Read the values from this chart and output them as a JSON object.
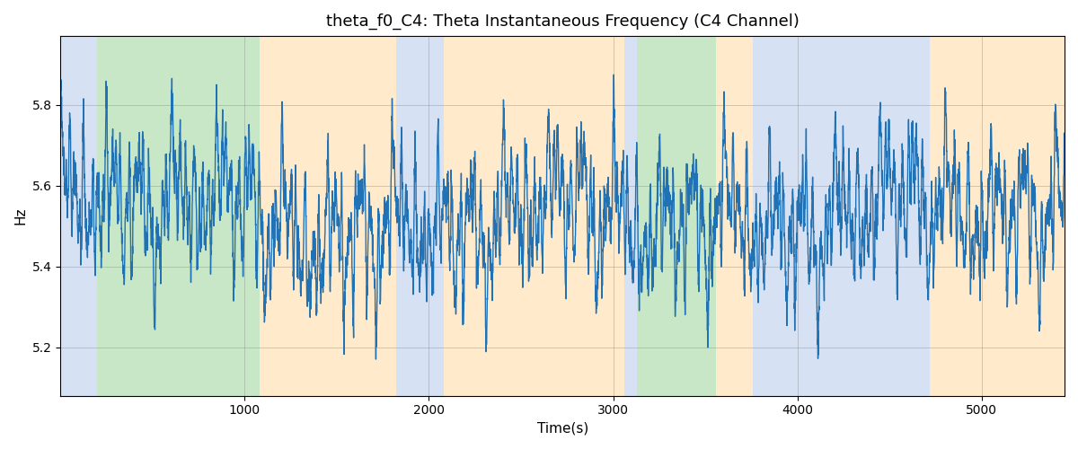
{
  "title": "theta_f0_C4: Theta Instantaneous Frequency (C4 Channel)",
  "xlabel": "Time(s)",
  "ylabel": "Hz",
  "xlim": [
    0,
    5450
  ],
  "ylim": [
    5.08,
    5.97
  ],
  "yticks": [
    5.2,
    5.4,
    5.6,
    5.8
  ],
  "xticks": [
    1000,
    2000,
    3000,
    4000,
    5000
  ],
  "line_color": "#2171b5",
  "line_width": 1.0,
  "seed": 42,
  "n_points": 5450,
  "base_freq": 5.52,
  "background_color": "#ffffff",
  "bands": [
    {
      "xmin": 0,
      "xmax": 200,
      "color": "#aec6e8",
      "alpha": 0.5
    },
    {
      "xmin": 200,
      "xmax": 1080,
      "color": "#90d090",
      "alpha": 0.5
    },
    {
      "xmin": 1080,
      "xmax": 1820,
      "color": "#ffd699",
      "alpha": 0.5
    },
    {
      "xmin": 1820,
      "xmax": 2080,
      "color": "#aec6e8",
      "alpha": 0.5
    },
    {
      "xmin": 2080,
      "xmax": 3060,
      "color": "#ffd699",
      "alpha": 0.5
    },
    {
      "xmin": 3060,
      "xmax": 3130,
      "color": "#aec6e8",
      "alpha": 0.5
    },
    {
      "xmin": 3130,
      "xmax": 3560,
      "color": "#90d090",
      "alpha": 0.5
    },
    {
      "xmin": 3560,
      "xmax": 3760,
      "color": "#ffd699",
      "alpha": 0.5
    },
    {
      "xmin": 3760,
      "xmax": 4720,
      "color": "#aec6e8",
      "alpha": 0.5
    },
    {
      "xmin": 4720,
      "xmax": 5000,
      "color": "#ffd699",
      "alpha": 0.5
    },
    {
      "xmin": 5000,
      "xmax": 5450,
      "color": "#ffd699",
      "alpha": 0.5
    }
  ],
  "title_fontsize": 13,
  "label_fontsize": 11,
  "tick_fontsize": 10,
  "figsize": [
    12.0,
    5.0
  ],
  "dpi": 100
}
